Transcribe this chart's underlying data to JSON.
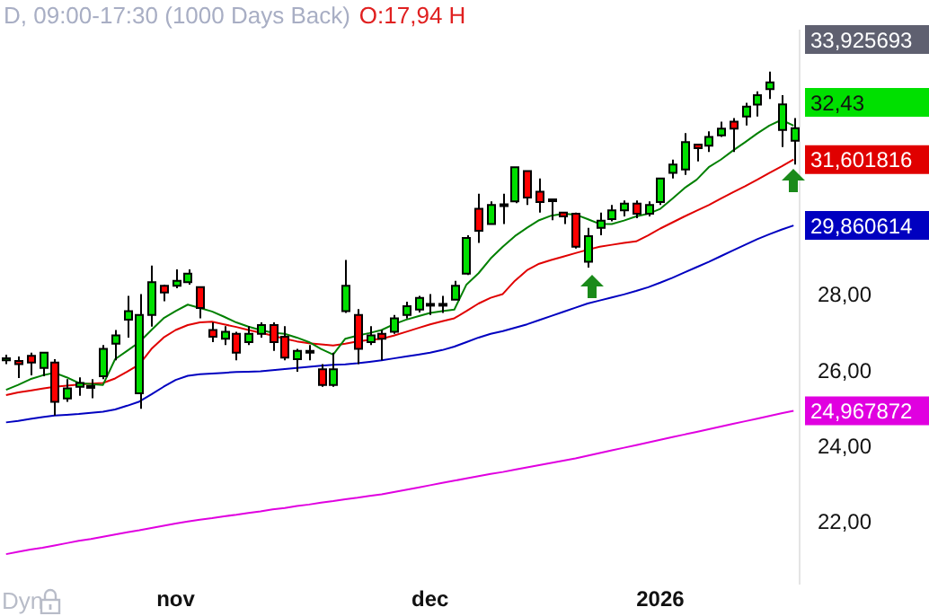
{
  "chart_data": {
    "type": "candlestick",
    "title": "D, 09:00-17:30 (1000 Days Back)",
    "annotations": [
      "O:17,94 H",
      "33,925693",
      "32,43",
      "Dyn"
    ],
    "categories": [
      null,
      null,
      null,
      null,
      null,
      null,
      null,
      null,
      null,
      null,
      null,
      null,
      null,
      null,
      "nov",
      null,
      null,
      null,
      null,
      null,
      null,
      null,
      null,
      null,
      null,
      null,
      null,
      null,
      null,
      null,
      null,
      null,
      null,
      null,
      null,
      "dec",
      null,
      null,
      null,
      null,
      null,
      null,
      null,
      null,
      null,
      null,
      null,
      null,
      null,
      null,
      null,
      null,
      null,
      null,
      "2026",
      null,
      null,
      null,
      null,
      null,
      null,
      null,
      null,
      null,
      null,
      null
    ],
    "ohlc": [
      [
        26.3,
        26.45,
        26.2,
        26.35
      ],
      [
        26.28,
        26.4,
        25.83,
        26.2
      ],
      [
        26.42,
        26.5,
        25.9,
        26.24
      ],
      [
        26.1,
        26.5,
        25.88,
        26.5
      ],
      [
        26.24,
        26.33,
        24.84,
        25.2
      ],
      [
        25.29,
        25.8,
        25.2,
        25.56
      ],
      [
        25.6,
        25.85,
        25.36,
        25.7
      ],
      [
        25.58,
        25.8,
        25.3,
        25.62
      ],
      [
        25.88,
        26.7,
        25.8,
        26.6
      ],
      [
        26.74,
        27.1,
        26.3,
        26.96
      ],
      [
        27.37,
        28.0,
        26.9,
        27.6
      ],
      [
        25.43,
        28.05,
        25.02,
        27.5
      ],
      [
        27.5,
        28.8,
        27.19,
        28.36
      ],
      [
        28.27,
        28.3,
        27.86,
        28.09
      ],
      [
        28.27,
        28.7,
        28.2,
        28.4
      ],
      [
        28.36,
        28.7,
        28.3,
        28.59
      ],
      [
        28.23,
        28.25,
        27.41,
        27.68
      ],
      [
        27.1,
        27.3,
        26.78,
        26.92
      ],
      [
        26.87,
        27.2,
        26.7,
        27.05
      ],
      [
        27.0,
        27.05,
        26.3,
        26.5
      ],
      [
        26.78,
        27.2,
        26.7,
        27.0
      ],
      [
        27.0,
        27.3,
        26.9,
        27.23
      ],
      [
        27.23,
        27.3,
        26.55,
        26.78
      ],
      [
        26.92,
        27.2,
        26.3,
        26.37
      ],
      [
        26.33,
        26.6,
        26.0,
        26.55
      ],
      [
        26.5,
        26.7,
        26.3,
        26.55
      ],
      [
        26.06,
        26.2,
        25.6,
        25.65
      ],
      [
        25.65,
        26.5,
        25.6,
        26.06
      ],
      [
        27.6,
        28.95,
        27.55,
        28.27
      ],
      [
        27.5,
        27.65,
        26.2,
        26.6
      ],
      [
        26.78,
        27.2,
        26.7,
        26.96
      ],
      [
        27.0,
        27.1,
        26.3,
        26.87
      ],
      [
        27.05,
        27.5,
        27.0,
        27.41
      ],
      [
        27.5,
        27.85,
        27.4,
        27.73
      ],
      [
        27.64,
        28.0,
        27.56,
        27.95
      ],
      [
        27.75,
        28.05,
        27.5,
        27.79
      ],
      [
        27.75,
        28.0,
        27.55,
        27.79
      ],
      [
        27.9,
        28.4,
        27.9,
        28.27
      ],
      [
        28.59,
        29.6,
        28.55,
        29.53
      ],
      [
        30.3,
        30.7,
        29.4,
        29.72
      ],
      [
        29.9,
        30.5,
        29.9,
        30.4
      ],
      [
        30.38,
        30.7,
        29.9,
        30.42
      ],
      [
        30.5,
        31.4,
        30.45,
        31.4
      ],
      [
        31.3,
        31.3,
        30.4,
        30.6
      ],
      [
        30.75,
        31.1,
        30.2,
        30.48
      ],
      [
        30.52,
        30.55,
        30.0,
        30.55
      ],
      [
        30.2,
        30.2,
        29.9,
        30.1
      ],
      [
        30.17,
        30.2,
        29.25,
        29.3
      ],
      [
        28.9,
        29.8,
        28.75,
        29.58
      ],
      [
        29.8,
        30.2,
        29.6,
        29.99
      ],
      [
        30.03,
        30.4,
        29.97,
        30.26
      ],
      [
        30.26,
        30.52,
        30.1,
        30.44
      ],
      [
        30.44,
        30.52,
        30.05,
        30.17
      ],
      [
        30.17,
        30.5,
        30.1,
        30.4
      ],
      [
        30.48,
        31.1,
        30.4,
        31.1
      ],
      [
        31.25,
        31.6,
        31.1,
        31.47
      ],
      [
        31.34,
        32.3,
        31.2,
        32.06
      ],
      [
        32.0,
        32.0,
        31.55,
        31.9
      ],
      [
        31.97,
        32.35,
        31.8,
        32.2
      ],
      [
        32.24,
        32.6,
        32.2,
        32.42
      ],
      [
        32.6,
        32.7,
        31.8,
        32.42
      ],
      [
        32.74,
        33.1,
        32.5,
        33.0
      ],
      [
        33.05,
        33.4,
        32.74,
        33.3
      ],
      [
        33.46,
        33.925693,
        33.2,
        33.64
      ],
      [
        32.38,
        33.3,
        31.93,
        33.06
      ],
      [
        32.1,
        32.7,
        31.47,
        32.43
      ]
    ],
    "series": [
      {
        "type": "line",
        "color": "#008000",
        "values": [
          25.52,
          25.65,
          25.8,
          25.9,
          25.97,
          25.85,
          25.7,
          25.67,
          25.65,
          26.33,
          26.55,
          26.78,
          27.1,
          27.41,
          27.6,
          27.77,
          27.68,
          27.59,
          27.45,
          27.3,
          27.19,
          27.1,
          27.03,
          27.0,
          26.9,
          26.78,
          26.6,
          26.45,
          26.87,
          26.95,
          27.02,
          27.1,
          27.25,
          27.37,
          27.46,
          27.55,
          27.6,
          27.64,
          28.3,
          28.6,
          28.99,
          29.3,
          29.58,
          29.8,
          30.0,
          30.12,
          30.17,
          30.15,
          30.03,
          29.9,
          29.9,
          29.99,
          30.1,
          30.17,
          30.3,
          30.57,
          30.85,
          31.07,
          31.4,
          31.6,
          31.84,
          32.06,
          32.29,
          32.5,
          32.65,
          32.5
        ]
      },
      {
        "type": "line",
        "color": "#e00000",
        "values": [
          25.38,
          25.45,
          25.5,
          25.55,
          25.6,
          25.63,
          25.66,
          25.68,
          25.7,
          25.82,
          26.0,
          26.19,
          26.6,
          26.9,
          27.1,
          27.23,
          27.3,
          27.32,
          27.25,
          27.18,
          27.1,
          27.03,
          26.95,
          26.87,
          26.8,
          26.75,
          26.72,
          26.69,
          26.74,
          26.8,
          26.84,
          26.87,
          26.95,
          27.05,
          27.15,
          27.25,
          27.33,
          27.41,
          27.6,
          27.8,
          27.95,
          28.05,
          28.4,
          28.68,
          28.85,
          28.95,
          29.04,
          29.13,
          29.22,
          29.3,
          29.35,
          29.4,
          29.44,
          29.6,
          29.78,
          29.94,
          30.1,
          30.25,
          30.4,
          30.57,
          30.74,
          30.9,
          31.07,
          31.25,
          31.42,
          31.601816
        ],
        "value_labels": [
          null,
          null,
          null,
          null,
          null,
          null,
          null,
          null,
          null,
          null,
          null,
          null,
          null,
          null,
          null,
          null,
          null,
          null,
          null,
          null,
          null,
          null,
          null,
          null,
          null,
          null,
          null,
          null,
          null,
          null,
          null,
          null,
          null,
          null,
          null,
          null,
          null,
          null,
          null,
          null,
          null,
          null,
          null,
          null,
          null,
          null,
          null,
          null,
          null,
          null,
          null,
          null,
          null,
          null,
          null,
          null,
          null,
          null,
          null,
          null,
          null,
          null,
          null,
          null,
          null,
          "31,601816"
        ]
      },
      {
        "type": "line",
        "color": "#0000c0",
        "values": [
          24.66,
          24.7,
          24.75,
          24.8,
          24.84,
          24.86,
          24.88,
          24.91,
          24.94,
          25.0,
          25.1,
          25.21,
          25.4,
          25.6,
          25.78,
          25.89,
          25.93,
          25.95,
          25.97,
          25.99,
          26.0,
          26.01,
          26.04,
          26.07,
          26.1,
          26.13,
          26.16,
          26.18,
          26.19,
          26.22,
          26.26,
          26.3,
          26.35,
          26.4,
          26.45,
          26.5,
          26.57,
          26.66,
          26.78,
          26.9,
          27.0,
          27.07,
          27.16,
          27.25,
          27.36,
          27.47,
          27.58,
          27.69,
          27.8,
          27.88,
          27.96,
          28.04,
          28.13,
          28.23,
          28.35,
          28.48,
          28.62,
          28.76,
          28.9,
          29.05,
          29.2,
          29.35,
          29.5,
          29.63,
          29.75,
          29.860614
        ],
        "value_labels": [
          null,
          null,
          null,
          null,
          null,
          null,
          null,
          null,
          null,
          null,
          null,
          null,
          null,
          null,
          null,
          null,
          null,
          null,
          null,
          null,
          null,
          null,
          null,
          null,
          null,
          null,
          null,
          null,
          null,
          null,
          null,
          null,
          null,
          null,
          null,
          null,
          null,
          null,
          null,
          null,
          null,
          null,
          null,
          null,
          null,
          null,
          null,
          null,
          null,
          null,
          null,
          null,
          null,
          null,
          null,
          null,
          null,
          null,
          null,
          null,
          null,
          null,
          null,
          null,
          null,
          "29,860614"
        ]
      },
      {
        "type": "line",
        "color": "#e000e0",
        "values": [
          21.18,
          21.24,
          21.3,
          21.35,
          21.41,
          21.47,
          21.53,
          21.58,
          21.64,
          21.7,
          21.76,
          21.81,
          21.87,
          21.93,
          21.99,
          22.04,
          22.09,
          22.13,
          22.18,
          22.22,
          22.27,
          22.31,
          22.36,
          22.4,
          22.45,
          22.49,
          22.54,
          22.58,
          22.63,
          22.67,
          22.72,
          22.76,
          22.82,
          22.88,
          22.94,
          23.0,
          23.06,
          23.12,
          23.18,
          23.24,
          23.3,
          23.35,
          23.41,
          23.47,
          23.53,
          23.59,
          23.65,
          23.71,
          23.78,
          23.85,
          23.92,
          23.99,
          24.06,
          24.13,
          24.2,
          24.27,
          24.34,
          24.41,
          24.48,
          24.55,
          24.62,
          24.69,
          24.76,
          24.83,
          24.9,
          24.967872
        ],
        "value_labels": [
          null,
          null,
          null,
          null,
          null,
          null,
          null,
          null,
          null,
          null,
          null,
          null,
          null,
          null,
          null,
          null,
          null,
          null,
          null,
          null,
          null,
          null,
          null,
          null,
          null,
          null,
          null,
          null,
          null,
          null,
          null,
          null,
          null,
          null,
          null,
          null,
          null,
          null,
          null,
          null,
          null,
          null,
          null,
          null,
          null,
          null,
          null,
          null,
          null,
          null,
          null,
          null,
          null,
          null,
          null,
          null,
          null,
          null,
          null,
          null,
          null,
          null,
          null,
          null,
          null,
          "24,967872"
        ]
      }
    ],
    "ylim": [
      20.4,
      35
    ],
    "yticks": [
      {
        "value": 22,
        "label": "22,00"
      },
      {
        "value": 24,
        "label": "24,00"
      },
      {
        "value": 26,
        "label": "26,00"
      },
      {
        "value": 28,
        "label": "28,00"
      }
    ],
    "marker": "none"
  }
}
